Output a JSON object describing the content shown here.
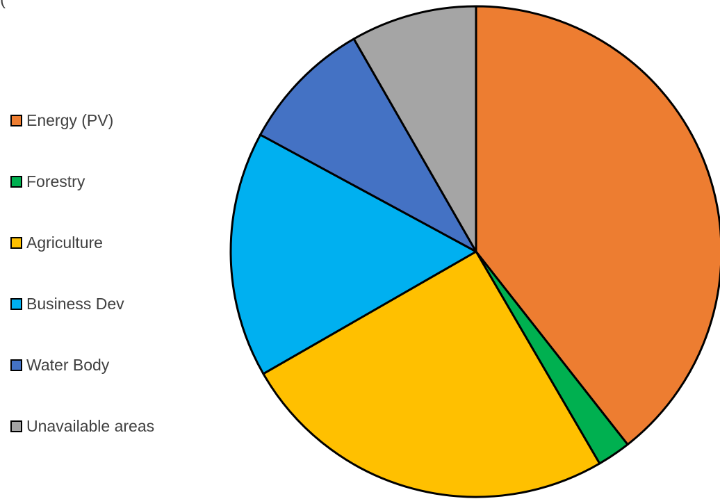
{
  "chart_data": {
    "type": "pie",
    "title": "(",
    "legend_position": "left",
    "slices": [
      {
        "label": "Energy (PV)",
        "value": 39.4,
        "color": "#ED7D31"
      },
      {
        "label": "Forestry",
        "value": 2.2,
        "color": "#00B050"
      },
      {
        "label": "Agriculture",
        "value": 25.1,
        "color": "#FFC000"
      },
      {
        "label": "Business Dev",
        "value": 16.2,
        "color": "#00B0F0"
      },
      {
        "label": "Water Body",
        "value": 8.8,
        "color": "#4472C4"
      },
      {
        "label": "Unavailable areas",
        "value": 8.3,
        "color": "#A5A5A5"
      }
    ]
  }
}
